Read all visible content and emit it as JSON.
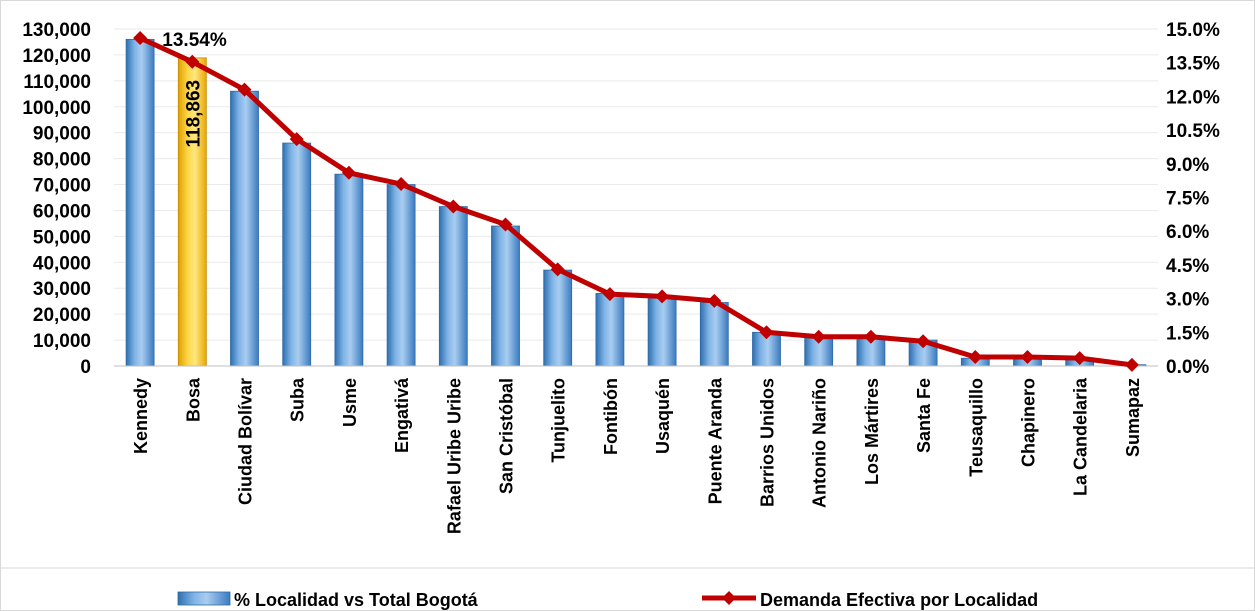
{
  "chart_data": {
    "type": "bar",
    "categories": [
      "Kennedy",
      "Bosa",
      "Ciudad Bolívar",
      "Suba",
      "Usme",
      "Engativá",
      "Rafael Uribe Uribe",
      "San Cristóbal",
      "Tunjuelito",
      "Fontibón",
      "Usaquén",
      "Puente Aranda",
      "Barrios Unidos",
      "Antonio Nariño",
      "Los Mártires",
      "Santa Fe",
      "Teusaquillo",
      "Chapinero",
      "La Candelaria",
      "Sumapaz"
    ],
    "series": [
      {
        "name": "% Localidad vs Total Bogotá",
        "chart_type": "bar",
        "axis": "left",
        "color": "#5b9bd5",
        "highlight_color": "#ffc000",
        "highlight_index": 1,
        "values": [
          126000,
          118863,
          106000,
          86000,
          74000,
          70000,
          61500,
          54000,
          37000,
          28000,
          27000,
          24500,
          13000,
          11000,
          11500,
          10000,
          3000,
          3000,
          3000,
          500
        ]
      },
      {
        "name": "Demanda Efectiva por Localidad",
        "chart_type": "line",
        "axis": "right",
        "color": "#c00000",
        "values": [
          14.6,
          13.54,
          12.3,
          10.1,
          8.6,
          8.1,
          7.1,
          6.3,
          4.3,
          3.2,
          3.1,
          2.9,
          1.5,
          1.3,
          1.3,
          1.1,
          0.4,
          0.4,
          0.35,
          0.05
        ]
      }
    ],
    "data_labels": [
      {
        "series": 0,
        "index": 1,
        "text": "118,863"
      },
      {
        "series": 1,
        "index": 1,
        "text": "13.54%"
      }
    ],
    "y_left": {
      "ylim": [
        0,
        130000
      ],
      "ticks": [
        "0",
        "10,000",
        "20,000",
        "30,000",
        "40,000",
        "50,000",
        "60,000",
        "70,000",
        "80,000",
        "90,000",
        "100,000",
        "110,000",
        "120,000",
        "130,000"
      ]
    },
    "y_right": {
      "ylim": [
        0,
        15
      ],
      "ticks": [
        "0.0%",
        "1.5%",
        "3.0%",
        "4.5%",
        "6.0%",
        "7.5%",
        "9.0%",
        "10.5%",
        "12.0%",
        "13.5%",
        "15.0%"
      ]
    },
    "grid": true,
    "legend": "bottom"
  }
}
